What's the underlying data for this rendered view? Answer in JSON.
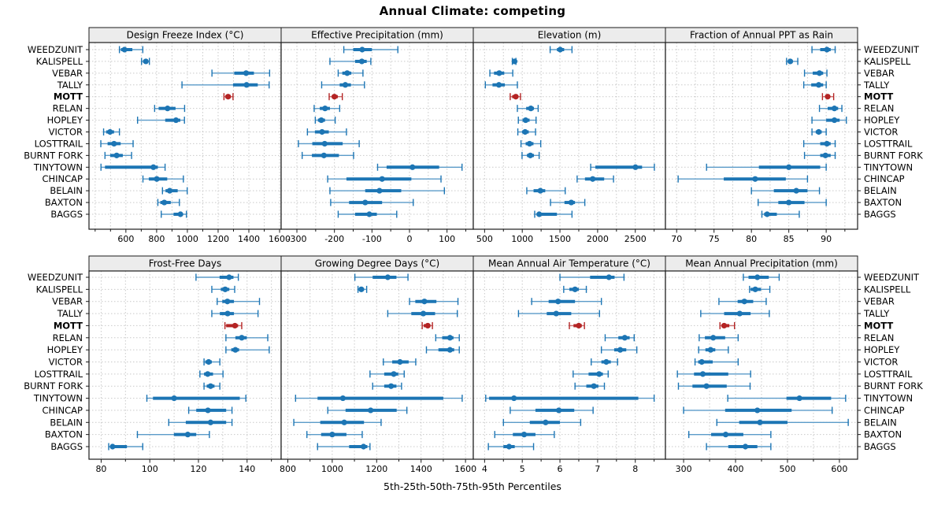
{
  "title": "Annual Climate: competing",
  "xlabel": "5th-25th-50th-75th-95th Percentiles",
  "stations": [
    "WEEDZUNIT",
    "KALISPELL",
    "VEBAR",
    "TALLY",
    "MOTT",
    "RELAN",
    "HOPLEY",
    "VICTOR",
    "LOSTTRAIL",
    "BURNT FORK",
    "TINYTOWN",
    "CHINCAP",
    "BELAIN",
    "BAXTON",
    "BAGGS"
  ],
  "highlight_station": "MOTT",
  "percentile_labels": [
    "5th",
    "25th",
    "50th",
    "75th",
    "95th"
  ],
  "colors": {
    "point": "#1c75b4",
    "range_thin": "#5b9bc9",
    "highlight": "#b42424",
    "highlight_thin": "#c96b6b",
    "grid": "#c9c9c9",
    "strip_bg": "#ececec",
    "border": "#1a1a1a"
  },
  "chart_data": [
    {
      "type": "dot-interval",
      "slug": "design-freeze-index",
      "title": "Design Freeze Index (°C)",
      "row": 0,
      "col": 0,
      "domain": [
        360,
        1610
      ],
      "ticks": [
        600,
        800,
        1000,
        1200,
        1400,
        1600
      ],
      "grid_step": 100,
      "series": {
        "WEEDZUNIT": [
          558,
          568,
          591,
          642,
          710
        ],
        "KALISPELL": [
          702,
          712,
          730,
          744,
          753
        ],
        "VEBAR": [
          1160,
          1305,
          1382,
          1433,
          1535
        ],
        "TALLY": [
          965,
          1297,
          1385,
          1458,
          1532
        ],
        "MOTT": [
          1238,
          1247,
          1265,
          1283,
          1297
        ],
        "RELAN": [
          787,
          813,
          871,
          923,
          982
        ],
        "HOPLEY": [
          676,
          856,
          926,
          954,
          981
        ],
        "VICTOR": [
          455,
          472,
          497,
          523,
          558
        ],
        "LOSTTRAIL": [
          437,
          481,
          523,
          566,
          647
        ],
        "BURNT FORK": [
          464,
          498,
          540,
          580,
          637
        ],
        "TINYTOWN": [
          438,
          464,
          779,
          808,
          855
        ],
        "CHINCAP": [
          711,
          749,
          801,
          869,
          974
        ],
        "BELAIN": [
          838,
          858,
          885,
          937,
          999
        ],
        "BAXTON": [
          808,
          824,
          850,
          892,
          948
        ],
        "BAGGS": [
          830,
          910,
          955,
          970,
          994
        ]
      }
    },
    {
      "type": "dot-interval",
      "slug": "effective-precipitation",
      "title": "Effective Precipitation (mm)",
      "row": 0,
      "col": 1,
      "domain": [
        -342,
        170
      ],
      "ticks": [
        -300,
        -200,
        -100,
        0,
        100
      ],
      "grid_step": 50,
      "series": {
        "WEEDZUNIT": [
          -175,
          -150,
          -126,
          -100,
          -31
        ],
        "KALISPELL": [
          -212,
          -145,
          -127,
          -114,
          -103
        ],
        "VEBAR": [
          -190,
          -179,
          -166,
          -155,
          -124
        ],
        "TALLY": [
          -234,
          -186,
          -171,
          -156,
          -120
        ],
        "MOTT": [
          -214,
          -207,
          -200,
          -191,
          -179
        ],
        "RELAN": [
          -254,
          -239,
          -225,
          -212,
          -186
        ],
        "HOPLEY": [
          -251,
          -244,
          -235,
          -225,
          -198
        ],
        "VICTOR": [
          -272,
          -252,
          -233,
          -215,
          -168
        ],
        "LOSTTRAIL": [
          -296,
          -259,
          -226,
          -178,
          -134
        ],
        "BURNT FORK": [
          -286,
          -260,
          -228,
          -188,
          -149
        ],
        "TINYTOWN": [
          -85,
          -61,
          8,
          79,
          140
        ],
        "CHINCAP": [
          -218,
          -168,
          -73,
          5,
          84
        ],
        "BELAIN": [
          -212,
          -118,
          -80,
          -22,
          93
        ],
        "BAXTON": [
          -210,
          -161,
          -118,
          -73,
          10
        ],
        "BAGGS": [
          -190,
          -145,
          -107,
          -87,
          -34
        ]
      }
    },
    {
      "type": "dot-interval",
      "slug": "elevation",
      "title": "Elevation (m)",
      "row": 0,
      "col": 2,
      "domain": [
        350,
        2900
      ],
      "ticks": [
        500,
        1000,
        1500,
        2000,
        2500
      ],
      "grid_step": 250,
      "series": {
        "WEEDZUNIT": [
          1370,
          1460,
          1503,
          1556,
          1660
        ],
        "KALISPELL": [
          868,
          888,
          898,
          906,
          916
        ],
        "VEBAR": [
          570,
          625,
          694,
          761,
          874
        ],
        "TALLY": [
          510,
          605,
          690,
          769,
          935
        ],
        "MOTT": [
          840,
          866,
          914,
          948,
          976
        ],
        "RELAN": [
          935,
          1052,
          1114,
          1155,
          1211
        ],
        "HOPLEY": [
          948,
          1004,
          1045,
          1097,
          1183
        ],
        "VICTOR": [
          941,
          997,
          1038,
          1086,
          1176
        ],
        "LOSTTRAIL": [
          983,
          1045,
          1097,
          1149,
          1245
        ],
        "BURNT FORK": [
          997,
          1062,
          1107,
          1155,
          1224
        ],
        "TINYTOWN": [
          1908,
          1970,
          2502,
          2590,
          2753
        ],
        "CHINCAP": [
          1728,
          1832,
          1935,
          2087,
          2211
        ],
        "BELAIN": [
          1060,
          1150,
          1240,
          1305,
          1570
        ],
        "BAXTON": [
          1375,
          1560,
          1650,
          1700,
          1830
        ],
        "BAGGS": [
          1165,
          1190,
          1225,
          1460,
          1660
        ]
      }
    },
    {
      "type": "dot-interval",
      "slug": "fraction-of-annual-ppt-as-rain",
      "title": "Fraction of Annual PPT as Rain",
      "row": 0,
      "col": 3,
      "domain": [
        68.5,
        94.2
      ],
      "ticks": [
        70,
        75,
        80,
        85,
        90
      ],
      "grid_step": 2.5,
      "series": {
        "WEEDZUNIT": [
          88.1,
          89.2,
          90.1,
          90.6,
          91.2
        ],
        "KALISPELL": [
          84.7,
          85.0,
          85.2,
          85.5,
          86.2
        ],
        "VEBAR": [
          87.1,
          88.2,
          89.1,
          89.6,
          90.1
        ],
        "TALLY": [
          87.0,
          88.0,
          89.0,
          89.6,
          90.0
        ],
        "MOTT": [
          89.5,
          89.9,
          90.2,
          90.5,
          91.0
        ],
        "RELAN": [
          89.1,
          90.2,
          91.1,
          91.6,
          92.1
        ],
        "HOPLEY": [
          88.1,
          90.0,
          91.1,
          91.8,
          92.7
        ],
        "VICTOR": [
          88.1,
          88.6,
          89.0,
          89.4,
          90.0
        ],
        "LOSTTRAIL": [
          87.0,
          89.2,
          90.1,
          90.6,
          91.2
        ],
        "BURNT FORK": [
          87.1,
          89.2,
          89.9,
          90.6,
          91.2
        ],
        "TINYTOWN": [
          74.0,
          81.0,
          85.0,
          89.2,
          90.0
        ],
        "CHINCAP": [
          70.2,
          76.3,
          80.5,
          84.6,
          87.5
        ],
        "BELAIN": [
          80.0,
          83.0,
          86.0,
          87.5,
          89.1
        ],
        "BAXTON": [
          80.9,
          83.6,
          85.0,
          87.1,
          90.0
        ],
        "BAGGS": [
          81.4,
          81.7,
          82.1,
          83.4,
          86.4
        ]
      }
    },
    {
      "type": "dot-interval",
      "slug": "frost-free-days",
      "title": "Frost-Free Days",
      "row": 1,
      "col": 0,
      "domain": [
        75,
        154
      ],
      "ticks": [
        80,
        100,
        120,
        140
      ],
      "grid_step": 10,
      "series": {
        "WEEDZUNIT": [
          119.0,
          128.7,
          132.6,
          134.4,
          136.4
        ],
        "KALISPELL": [
          125.5,
          129.2,
          131.0,
          132.7,
          134.9
        ],
        "VEBAR": [
          127.7,
          129.8,
          131.9,
          134.6,
          145.1
        ],
        "TALLY": [
          125.5,
          128.8,
          132.0,
          134.6,
          144.5
        ],
        "MOTT": [
          130.9,
          131.4,
          135.0,
          136.3,
          137.8
        ],
        "RELAN": [
          131.3,
          135.2,
          137.8,
          139.9,
          148.5
        ],
        "HOPLEY": [
          131.3,
          133.5,
          135.2,
          136.7,
          149.1
        ],
        "VICTOR": [
          122.3,
          122.8,
          124.2,
          125.5,
          128.8
        ],
        "LOSTTRAIL": [
          120.6,
          122.3,
          123.8,
          126.0,
          130.1
        ],
        "BURNT FORK": [
          122.3,
          123.4,
          125.0,
          126.6,
          128.8
        ],
        "TINYTOWN": [
          98.8,
          101.3,
          110.0,
          137.0,
          139.5
        ],
        "CHINCAP": [
          116.0,
          119.1,
          123.9,
          131.4,
          133.8
        ],
        "BELAIN": [
          107.8,
          114.8,
          125.0,
          131.4,
          133.8
        ],
        "BAXTON": [
          94.9,
          109.9,
          115.6,
          119.1,
          124.5
        ],
        "BAGGS": [
          83.1,
          83.8,
          84.7,
          90.6,
          97.1
        ]
      }
    },
    {
      "type": "dot-interval",
      "slug": "growing-degree-days",
      "title": "Growing Degree Days (°C)",
      "row": 1,
      "col": 1,
      "domain": [
        770,
        1635
      ],
      "ticks": [
        800,
        1000,
        1200,
        1400,
        1600
      ],
      "grid_step": 100,
      "series": {
        "WEEDZUNIT": [
          1102,
          1182,
          1250,
          1289,
          1341
        ],
        "KALISPELL": [
          1116,
          1123,
          1131,
          1143,
          1155
        ],
        "VEBAR": [
          1348,
          1374,
          1415,
          1469,
          1566
        ],
        "TALLY": [
          1250,
          1356,
          1410,
          1463,
          1563
        ],
        "MOTT": [
          1405,
          1412,
          1430,
          1442,
          1451
        ],
        "RELAN": [
          1466,
          1495,
          1530,
          1546,
          1572
        ],
        "HOPLEY": [
          1424,
          1478,
          1530,
          1549,
          1572
        ],
        "VICTOR": [
          1230,
          1270,
          1305,
          1344,
          1376
        ],
        "LOSTTRAIL": [
          1170,
          1234,
          1277,
          1297,
          1324
        ],
        "BURNT FORK": [
          1182,
          1234,
          1265,
          1289,
          1312
        ],
        "TINYTOWN": [
          835,
          934,
          1048,
          1500,
          1585
        ],
        "CHINCAP": [
          980,
          1060,
          1173,
          1290,
          1336
        ],
        "BELAIN": [
          827,
          946,
          1054,
          1143,
          1220
        ],
        "BAXTON": [
          886,
          950,
          1000,
          1064,
          1135
        ],
        "BAGGS": [
          934,
          1076,
          1141,
          1158,
          1170
        ]
      }
    },
    {
      "type": "dot-interval",
      "slug": "mean-annual-air-temperature",
      "title": "Mean Annual Air Temperature (°C)",
      "row": 1,
      "col": 2,
      "domain": [
        3.7,
        8.8
      ],
      "ticks": [
        4,
        5,
        6,
        7,
        8
      ],
      "grid_step": 0.5,
      "series": {
        "WEEDZUNIT": [
          6.0,
          6.8,
          7.3,
          7.45,
          7.7
        ],
        "KALISPELL": [
          6.1,
          6.25,
          6.4,
          6.5,
          6.7
        ],
        "VEBAR": [
          5.25,
          5.7,
          5.95,
          6.4,
          7.1
        ],
        "TALLY": [
          4.9,
          5.65,
          5.9,
          6.3,
          7.05
        ],
        "MOTT": [
          6.25,
          6.36,
          6.5,
          6.58,
          6.65
        ],
        "RELAN": [
          7.2,
          7.55,
          7.72,
          7.85,
          7.97
        ],
        "HOPLEY": [
          7.1,
          7.44,
          7.6,
          7.76,
          8.04
        ],
        "VICTOR": [
          6.83,
          7.1,
          7.23,
          7.35,
          7.53
        ],
        "LOSTTRAIL": [
          6.35,
          6.76,
          7.04,
          7.14,
          7.28
        ],
        "BURNT FORK": [
          6.4,
          6.7,
          6.9,
          7.02,
          7.18
        ],
        "TINYTOWN": [
          4.03,
          4.12,
          4.78,
          8.08,
          8.5
        ],
        "CHINCAP": [
          4.68,
          5.35,
          5.97,
          6.38,
          6.88
        ],
        "BELAIN": [
          4.5,
          5.2,
          5.62,
          6.0,
          6.55
        ],
        "BAXTON": [
          4.27,
          4.75,
          5.05,
          5.35,
          5.85
        ],
        "BAGGS": [
          4.1,
          4.5,
          4.65,
          4.8,
          5.3
        ]
      }
    },
    {
      "type": "dot-interval",
      "slug": "mean-annual-precipitation",
      "title": "Mean Annual Precipitation (mm)",
      "row": 1,
      "col": 3,
      "domain": [
        265,
        635
      ],
      "ticks": [
        300,
        400,
        500,
        600
      ],
      "grid_step": 50,
      "series": {
        "WEEDZUNIT": [
          415,
          425,
          442,
          464,
          484
        ],
        "KALISPELL": [
          427,
          429,
          438,
          449,
          466
        ],
        "VEBAR": [
          368,
          404,
          417,
          434,
          459
        ],
        "TALLY": [
          333,
          378,
          408,
          429,
          465
        ],
        "MOTT": [
          370,
          373,
          378,
          388,
          398
        ],
        "RELAN": [
          330,
          341,
          357,
          380,
          405
        ],
        "HOPLEY": [
          329,
          342,
          352,
          361,
          386
        ],
        "VICTOR": [
          322,
          328,
          335,
          356,
          405
        ],
        "LOSTTRAIL": [
          288,
          320,
          337,
          386,
          429
        ],
        "BURNT FORK": [
          290,
          317,
          344,
          383,
          428
        ],
        "TINYTOWN": [
          385,
          498,
          523,
          584,
          612
        ],
        "CHINCAP": [
          300,
          380,
          442,
          508,
          586
        ],
        "BELAIN": [
          364,
          407,
          447,
          500,
          617
        ],
        "BAXTON": [
          310,
          353,
          381,
          415,
          468
        ],
        "BAGGS": [
          344,
          386,
          419,
          442,
          468
        ]
      }
    }
  ]
}
